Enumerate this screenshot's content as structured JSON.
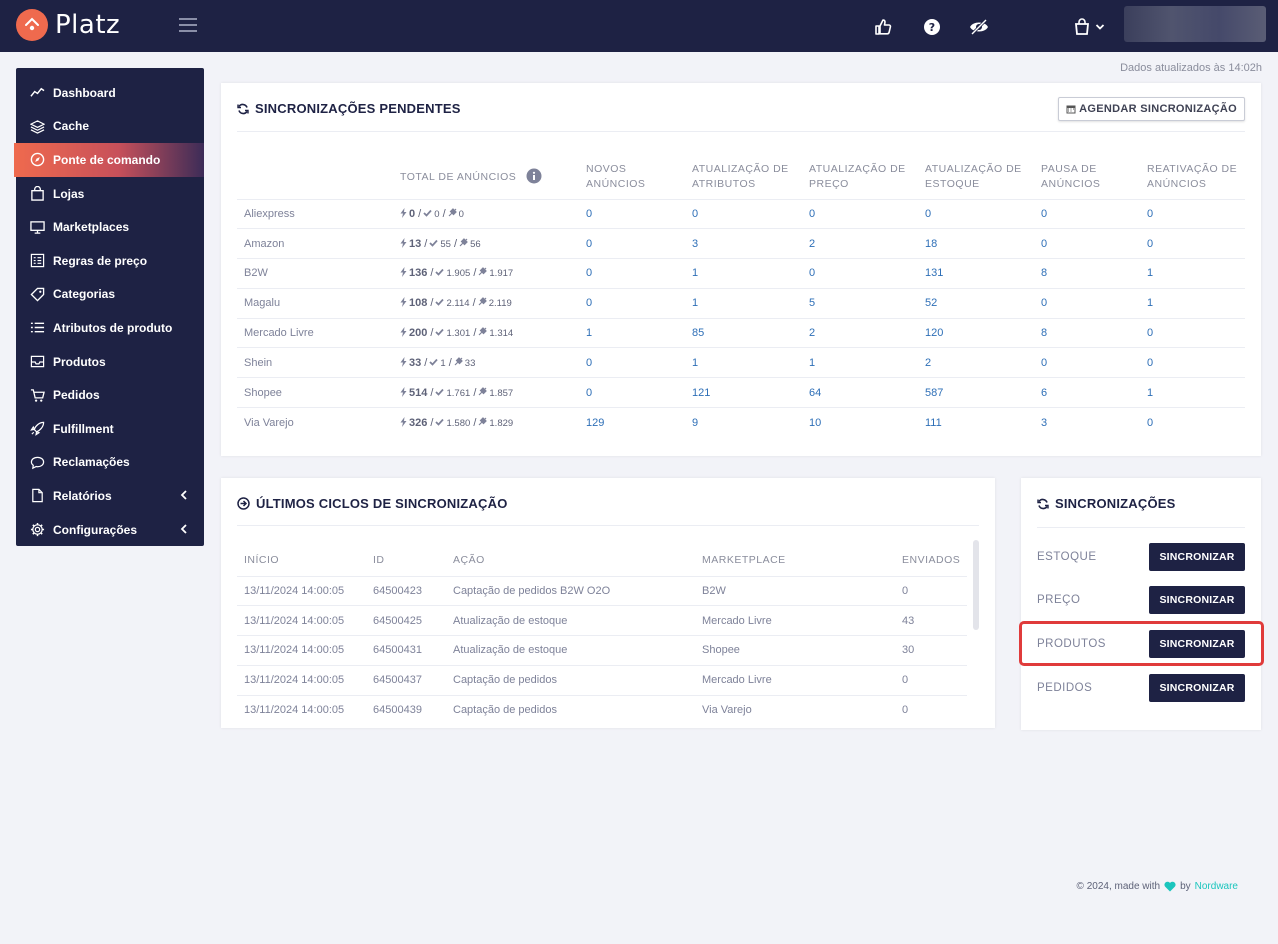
{
  "app": {
    "name": "Platz"
  },
  "header": {
    "icons": [
      "thumbs-up-icon",
      "help-icon",
      "eye-slash-icon",
      "shopping-bag-icon",
      "chevron-down-icon"
    ],
    "updated_text": "Dados atualizados às 14:02h"
  },
  "sidebar": {
    "items": [
      {
        "label": "Dashboard",
        "icon": "chart-line-icon"
      },
      {
        "label": "Cache",
        "icon": "layers-icon"
      },
      {
        "label": "Ponte de comando",
        "icon": "compass-icon",
        "active": true
      },
      {
        "label": "Lojas",
        "icon": "shopping-bag-icon"
      },
      {
        "label": "Marketplaces",
        "icon": "monitor-icon"
      },
      {
        "label": "Regras de preço",
        "icon": "list-check-icon"
      },
      {
        "label": "Categorias",
        "icon": "tag-icon"
      },
      {
        "label": "Atributos de produto",
        "icon": "list-icon"
      },
      {
        "label": "Produtos",
        "icon": "inbox-icon"
      },
      {
        "label": "Pedidos",
        "icon": "cart-icon"
      },
      {
        "label": "Fulfillment",
        "icon": "rocket-icon"
      },
      {
        "label": "Reclamações",
        "icon": "chat-icon"
      },
      {
        "label": "Relatórios",
        "icon": "file-icon",
        "expandable": true
      },
      {
        "label": "Configurações",
        "icon": "gear-icon",
        "expandable": true
      }
    ]
  },
  "pending": {
    "title": "SINCRONIZAÇÕES PENDENTES",
    "schedule_button": "AGENDAR SINCRONIZAÇÃO",
    "columns": {
      "total": "TOTAL DE ANÚNCIOS",
      "new_ads": [
        "NOVOS",
        "ANÚNCIOS"
      ],
      "attr": [
        "ATUALIZAÇÃO DE",
        "ATRIBUTOS"
      ],
      "price": [
        "ATUALIZAÇÃO DE",
        "PREÇO"
      ],
      "stock": [
        "ATUALIZAÇÃO DE",
        "ESTOQUE"
      ],
      "pause": [
        "PAUSA DE",
        "ANÚNCIOS"
      ],
      "reactivate": [
        "REATIVAÇÃO DE",
        "ANÚNCIOS"
      ]
    },
    "rows": [
      {
        "marketplace": "Aliexpress",
        "total": "0",
        "active": "0",
        "inactive": "0",
        "new": "0",
        "attr": "0",
        "price": "0",
        "stock": "0",
        "pause": "0",
        "reactivate": "0"
      },
      {
        "marketplace": "Amazon",
        "total": "13",
        "active": "55",
        "inactive": "56",
        "new": "0",
        "attr": "3",
        "price": "2",
        "stock": "18",
        "pause": "0",
        "reactivate": "0"
      },
      {
        "marketplace": "B2W",
        "total": "136",
        "active": "1.905",
        "inactive": "1.917",
        "new": "0",
        "attr": "1",
        "price": "0",
        "stock": "131",
        "pause": "8",
        "reactivate": "1"
      },
      {
        "marketplace": "Magalu",
        "total": "108",
        "active": "2.114",
        "inactive": "2.119",
        "new": "0",
        "attr": "1",
        "price": "5",
        "stock": "52",
        "pause": "0",
        "reactivate": "1"
      },
      {
        "marketplace": "Mercado Livre",
        "total": "200",
        "active": "1.301",
        "inactive": "1.314",
        "new": "1",
        "attr": "85",
        "price": "2",
        "stock": "120",
        "pause": "8",
        "reactivate": "0"
      },
      {
        "marketplace": "Shein",
        "total": "33",
        "active": "1",
        "inactive": "33",
        "new": "0",
        "attr": "1",
        "price": "1",
        "stock": "2",
        "pause": "0",
        "reactivate": "0"
      },
      {
        "marketplace": "Shopee",
        "total": "514",
        "active": "1.761",
        "inactive": "1.857",
        "new": "0",
        "attr": "121",
        "price": "64",
        "stock": "587",
        "pause": "6",
        "reactivate": "1"
      },
      {
        "marketplace": "Via Varejo",
        "total": "326",
        "active": "1.580",
        "inactive": "1.829",
        "new": "129",
        "attr": "9",
        "price": "10",
        "stock": "111",
        "pause": "3",
        "reactivate": "0"
      }
    ]
  },
  "cycles": {
    "title": "ÚLTIMOS CICLOS DE SINCRONIZAÇÃO",
    "columns": [
      "INÍCIO",
      "ID",
      "AÇÃO",
      "MARKETPLACE",
      "ENVIADOS"
    ],
    "rows": [
      [
        "13/11/2024 14:00:05",
        "64500423",
        "Captação de pedidos B2W O2O",
        "B2W",
        "0"
      ],
      [
        "13/11/2024 14:00:05",
        "64500425",
        "Atualização de estoque",
        "Mercado Livre",
        "43"
      ],
      [
        "13/11/2024 14:00:05",
        "64500431",
        "Atualização de estoque",
        "Shopee",
        "30"
      ],
      [
        "13/11/2024 14:00:05",
        "64500437",
        "Captação de pedidos",
        "Mercado Livre",
        "0"
      ],
      [
        "13/11/2024 14:00:05",
        "64500439",
        "Captação de pedidos",
        "Via Varejo",
        "0"
      ]
    ]
  },
  "syncs": {
    "title": "SINCRONIZAÇÕES",
    "items": [
      {
        "label": "ESTOQUE",
        "button": "SINCRONIZAR"
      },
      {
        "label": "PREÇO",
        "button": "SINCRONIZAR"
      },
      {
        "label": "PRODUTOS",
        "button": "SINCRONIZAR",
        "highlighted": true
      },
      {
        "label": "PEDIDOS",
        "button": "SINCRONIZAR"
      }
    ]
  },
  "footer": {
    "text": "© 2024, made with",
    "by": "by",
    "brand": "Nordware"
  },
  "colors": {
    "navy": "#1e2244",
    "accent": "#ef6a4e",
    "link": "#2e6fb7",
    "highlight": "#e03b3b",
    "heart": "#1bc5bd"
  }
}
